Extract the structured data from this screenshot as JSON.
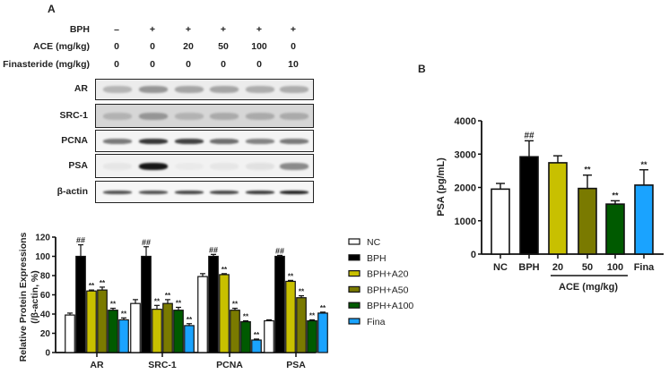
{
  "panel_a": {
    "label": "A",
    "treatments": {
      "rows": [
        {
          "label": "BPH",
          "values": [
            "–",
            "+",
            "+",
            "+",
            "+",
            "+"
          ]
        },
        {
          "label": "ACE (mg/kg)",
          "values": [
            "0",
            "0",
            "20",
            "50",
            "100",
            "0"
          ]
        },
        {
          "label": "Finasteride (mg/kg)",
          "values": [
            "0",
            "0",
            "0",
            "0",
            "0",
            "10"
          ]
        }
      ]
    },
    "blots": [
      {
        "label": "AR"
      },
      {
        "label": "SRC-1"
      },
      {
        "label": "PCNA"
      },
      {
        "label": "PSA"
      },
      {
        "label": "β-actin"
      }
    ]
  },
  "panel_b": {
    "label": "B"
  },
  "colors": {
    "NC": "#ffffff",
    "BPH": "#000000",
    "BPH+A20": "#c8c000",
    "BPH+A50": "#7a7a00",
    "BPH+A100": "#005a00",
    "Fina": "#1aa3ff"
  },
  "chart_data": [
    {
      "type": "bar",
      "panel": "A",
      "title": "",
      "xlabel": "",
      "ylabel": "Relative Protein Expressions",
      "ylabel2": "(/β-actin, %)",
      "ylim": [
        0,
        120
      ],
      "yticks": [
        "0",
        "20",
        "40",
        "60",
        "80",
        "100",
        "120"
      ],
      "categories": [
        "AR",
        "SRC-1",
        "PCNA",
        "PSA"
      ],
      "legend_position": "right",
      "series": [
        {
          "name": "NC",
          "values": [
            39,
            51,
            79,
            33
          ],
          "errors": [
            2,
            4,
            3,
            1
          ],
          "marks": [
            "",
            "",
            "",
            ""
          ]
        },
        {
          "name": "BPH",
          "values": [
            100,
            100,
            100,
            100
          ],
          "errors": [
            12,
            10,
            2,
            1
          ],
          "marks": [
            "##",
            "##",
            "##",
            "##"
          ]
        },
        {
          "name": "BPH+A20",
          "values": [
            64,
            45,
            81,
            74
          ],
          "errors": [
            1,
            4,
            1,
            1
          ],
          "marks": [
            "**",
            "**",
            "**",
            "**"
          ]
        },
        {
          "name": "BPH+A50",
          "values": [
            65,
            51,
            44,
            57
          ],
          "errors": [
            3,
            4,
            2,
            2
          ],
          "marks": [
            "**",
            "**",
            "**",
            "**"
          ]
        },
        {
          "name": "BPH+A100",
          "values": [
            44,
            44,
            32,
            33
          ],
          "errors": [
            2,
            3,
            1,
            1
          ],
          "marks": [
            "**",
            "**",
            "**",
            "**"
          ]
        },
        {
          "name": "Fina",
          "values": [
            34,
            28,
            13,
            41
          ],
          "errors": [
            2,
            2,
            1,
            1
          ],
          "marks": [
            "**",
            "**",
            "**",
            "**"
          ]
        }
      ]
    },
    {
      "type": "bar",
      "panel": "B",
      "title": "",
      "xlabel": "ACE (mg/kg)",
      "ylabel": "PSA (pg/mL)",
      "ylim": [
        0,
        4000
      ],
      "yticks": [
        "0",
        "1000",
        "2000",
        "3000",
        "4000"
      ],
      "categories": [
        "NC",
        "BPH",
        "20",
        "50",
        "100",
        "Fina"
      ],
      "values": [
        1950,
        2920,
        2740,
        1970,
        1500,
        2070
      ],
      "errors": [
        170,
        480,
        210,
        400,
        100,
        460
      ],
      "marks": [
        "",
        "##",
        "",
        "**",
        "**",
        "**"
      ],
      "bracket": {
        "label": "ACE (mg/kg)",
        "spans": [
          "20",
          "50",
          "100"
        ]
      }
    }
  ]
}
